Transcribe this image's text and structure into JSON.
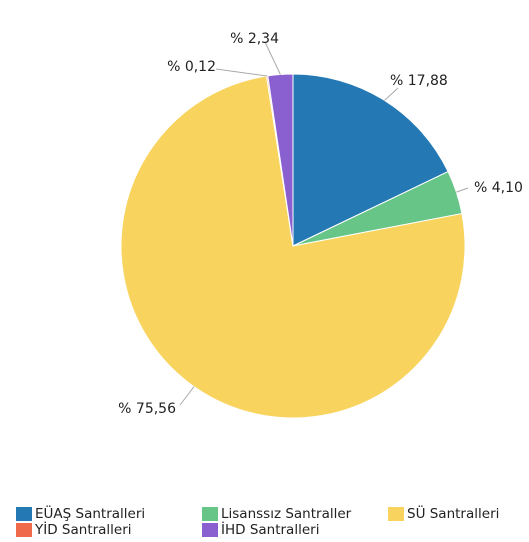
{
  "chart_data": {
    "type": "pie",
    "slices": [
      {
        "name": "EÜAŞ Santralleri",
        "value": 17.88,
        "label": "% 17,88",
        "color": "#2479b5"
      },
      {
        "name": "Lisanssız Santraller",
        "value": 4.1,
        "label": "% 4,10",
        "color": "#66c587"
      },
      {
        "name": "SÜ Santralleri",
        "value": 75.56,
        "label": "% 75,56",
        "color": "#f8d45f"
      },
      {
        "name": "YİD Santralleri",
        "value": 0.12,
        "label": "% 0,12",
        "color": "#ee6a4b"
      },
      {
        "name": "İHD Santralleri",
        "value": 2.34,
        "label": "% 2,34",
        "color": "#8a5fcf"
      }
    ],
    "legend": [
      {
        "label": "EÜAŞ Santralleri",
        "color": "#2479b5"
      },
      {
        "label": "Lisanssız Santraller",
        "color": "#66c587"
      },
      {
        "label": "SÜ Santralleri",
        "color": "#f8d45f"
      },
      {
        "label": "YİD Santralleri",
        "color": "#ee6a4b"
      },
      {
        "label": "İHD Santralleri",
        "color": "#8a5fcf"
      }
    ],
    "legend_position": "bottom"
  }
}
